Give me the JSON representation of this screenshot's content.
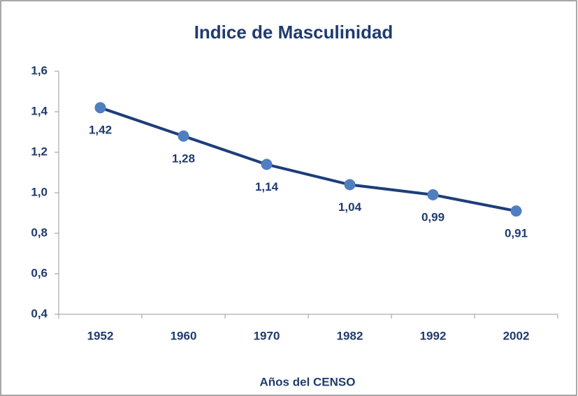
{
  "chart_data": {
    "type": "line",
    "title": "Indice de Masculinidad",
    "x_label": "Años del CENSO",
    "categories": [
      "1952",
      "1960",
      "1970",
      "1982",
      "1992",
      "2002"
    ],
    "series": [
      {
        "name": "Indice de Masculinidad",
        "line_color": "#1f3d7a",
        "color": "#4f7fc0",
        "values": [
          1.42,
          1.28,
          1.14,
          1.04,
          0.99,
          0.91
        ],
        "value_labels": [
          "1,42",
          "1,28",
          "1,14",
          "1,04",
          "0,99",
          "0,91"
        ]
      }
    ],
    "ylim": [
      0.4,
      1.6
    ],
    "yticks": [
      {
        "value": 0.4,
        "label": "0,4"
      },
      {
        "value": 0.6,
        "label": "0,6"
      },
      {
        "value": 0.8,
        "label": "0,8"
      },
      {
        "value": 1.0,
        "label": "1,0"
      },
      {
        "value": 1.2,
        "label": "1,2"
      },
      {
        "value": 1.4,
        "label": "1,4"
      },
      {
        "value": 1.6,
        "label": "1,6"
      }
    ],
    "grid": false
  }
}
